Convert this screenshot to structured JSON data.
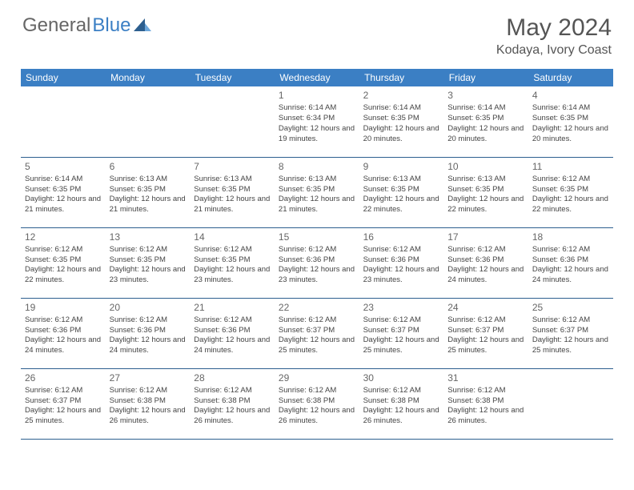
{
  "brand": {
    "part1": "General",
    "part2": "Blue"
  },
  "title": {
    "month": "May 2024",
    "location": "Kodaya, Ivory Coast"
  },
  "colors": {
    "header_bg": "#3b7fc4",
    "header_text": "#ffffff",
    "row_border": "#2d5f8f",
    "text": "#444444",
    "title": "#555555"
  },
  "weekdays": [
    "Sunday",
    "Monday",
    "Tuesday",
    "Wednesday",
    "Thursday",
    "Friday",
    "Saturday"
  ],
  "weeks": [
    [
      null,
      null,
      null,
      {
        "d": "1",
        "sr": "6:14 AM",
        "ss": "6:34 PM",
        "dl": "12 hours and 19 minutes."
      },
      {
        "d": "2",
        "sr": "6:14 AM",
        "ss": "6:35 PM",
        "dl": "12 hours and 20 minutes."
      },
      {
        "d": "3",
        "sr": "6:14 AM",
        "ss": "6:35 PM",
        "dl": "12 hours and 20 minutes."
      },
      {
        "d": "4",
        "sr": "6:14 AM",
        "ss": "6:35 PM",
        "dl": "12 hours and 20 minutes."
      }
    ],
    [
      {
        "d": "5",
        "sr": "6:14 AM",
        "ss": "6:35 PM",
        "dl": "12 hours and 21 minutes."
      },
      {
        "d": "6",
        "sr": "6:13 AM",
        "ss": "6:35 PM",
        "dl": "12 hours and 21 minutes."
      },
      {
        "d": "7",
        "sr": "6:13 AM",
        "ss": "6:35 PM",
        "dl": "12 hours and 21 minutes."
      },
      {
        "d": "8",
        "sr": "6:13 AM",
        "ss": "6:35 PM",
        "dl": "12 hours and 21 minutes."
      },
      {
        "d": "9",
        "sr": "6:13 AM",
        "ss": "6:35 PM",
        "dl": "12 hours and 22 minutes."
      },
      {
        "d": "10",
        "sr": "6:13 AM",
        "ss": "6:35 PM",
        "dl": "12 hours and 22 minutes."
      },
      {
        "d": "11",
        "sr": "6:12 AM",
        "ss": "6:35 PM",
        "dl": "12 hours and 22 minutes."
      }
    ],
    [
      {
        "d": "12",
        "sr": "6:12 AM",
        "ss": "6:35 PM",
        "dl": "12 hours and 22 minutes."
      },
      {
        "d": "13",
        "sr": "6:12 AM",
        "ss": "6:35 PM",
        "dl": "12 hours and 23 minutes."
      },
      {
        "d": "14",
        "sr": "6:12 AM",
        "ss": "6:35 PM",
        "dl": "12 hours and 23 minutes."
      },
      {
        "d": "15",
        "sr": "6:12 AM",
        "ss": "6:36 PM",
        "dl": "12 hours and 23 minutes."
      },
      {
        "d": "16",
        "sr": "6:12 AM",
        "ss": "6:36 PM",
        "dl": "12 hours and 23 minutes."
      },
      {
        "d": "17",
        "sr": "6:12 AM",
        "ss": "6:36 PM",
        "dl": "12 hours and 24 minutes."
      },
      {
        "d": "18",
        "sr": "6:12 AM",
        "ss": "6:36 PM",
        "dl": "12 hours and 24 minutes."
      }
    ],
    [
      {
        "d": "19",
        "sr": "6:12 AM",
        "ss": "6:36 PM",
        "dl": "12 hours and 24 minutes."
      },
      {
        "d": "20",
        "sr": "6:12 AM",
        "ss": "6:36 PM",
        "dl": "12 hours and 24 minutes."
      },
      {
        "d": "21",
        "sr": "6:12 AM",
        "ss": "6:36 PM",
        "dl": "12 hours and 24 minutes."
      },
      {
        "d": "22",
        "sr": "6:12 AM",
        "ss": "6:37 PM",
        "dl": "12 hours and 25 minutes."
      },
      {
        "d": "23",
        "sr": "6:12 AM",
        "ss": "6:37 PM",
        "dl": "12 hours and 25 minutes."
      },
      {
        "d": "24",
        "sr": "6:12 AM",
        "ss": "6:37 PM",
        "dl": "12 hours and 25 minutes."
      },
      {
        "d": "25",
        "sr": "6:12 AM",
        "ss": "6:37 PM",
        "dl": "12 hours and 25 minutes."
      }
    ],
    [
      {
        "d": "26",
        "sr": "6:12 AM",
        "ss": "6:37 PM",
        "dl": "12 hours and 25 minutes."
      },
      {
        "d": "27",
        "sr": "6:12 AM",
        "ss": "6:38 PM",
        "dl": "12 hours and 26 minutes."
      },
      {
        "d": "28",
        "sr": "6:12 AM",
        "ss": "6:38 PM",
        "dl": "12 hours and 26 minutes."
      },
      {
        "d": "29",
        "sr": "6:12 AM",
        "ss": "6:38 PM",
        "dl": "12 hours and 26 minutes."
      },
      {
        "d": "30",
        "sr": "6:12 AM",
        "ss": "6:38 PM",
        "dl": "12 hours and 26 minutes."
      },
      {
        "d": "31",
        "sr": "6:12 AM",
        "ss": "6:38 PM",
        "dl": "12 hours and 26 minutes."
      },
      null
    ]
  ],
  "labels": {
    "sunrise": "Sunrise:",
    "sunset": "Sunset:",
    "daylight": "Daylight:"
  }
}
